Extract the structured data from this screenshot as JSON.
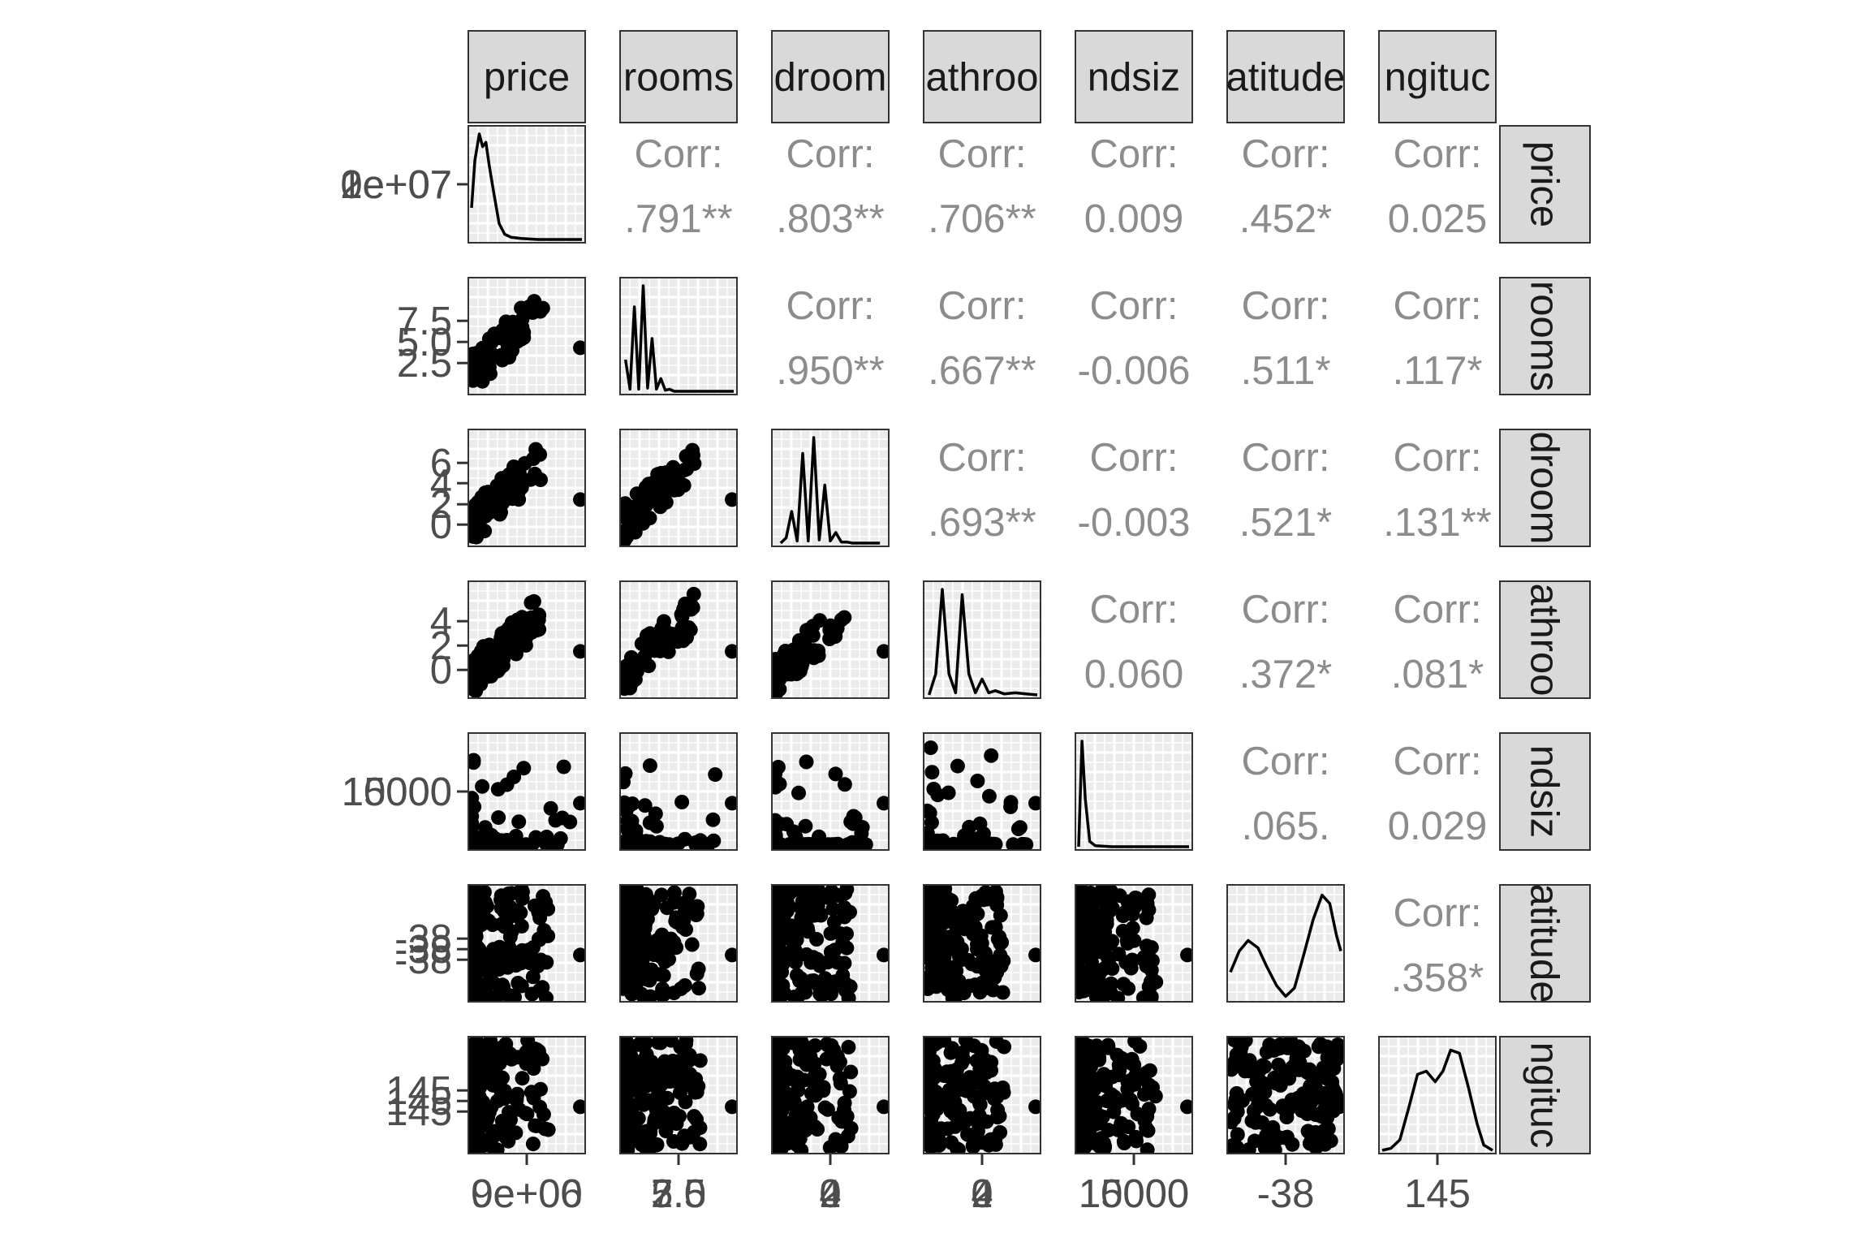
{
  "chart_data": {
    "type": "scatter-matrix",
    "variables": [
      "price",
      "rooms",
      "bedrooms",
      "bathrooms",
      "landsize",
      "latitude",
      "longitude"
    ],
    "strip_labels": [
      "price",
      "rooms",
      "droom",
      "athroo",
      "ndsiz",
      "atitude",
      "ngituc"
    ],
    "corr_prefix": "Corr:",
    "correlations": [
      {
        "row": 0,
        "col": 1,
        "text": ".791**"
      },
      {
        "row": 0,
        "col": 2,
        "text": ".803**"
      },
      {
        "row": 0,
        "col": 3,
        "text": ".706**"
      },
      {
        "row": 0,
        "col": 4,
        "text": "0.009"
      },
      {
        "row": 0,
        "col": 5,
        "text": ".452*"
      },
      {
        "row": 0,
        "col": 6,
        "text": "0.025"
      },
      {
        "row": 1,
        "col": 2,
        "text": ".950**"
      },
      {
        "row": 1,
        "col": 3,
        "text": ".667**"
      },
      {
        "row": 1,
        "col": 4,
        "text": "-0.006"
      },
      {
        "row": 1,
        "col": 5,
        "text": ".511*"
      },
      {
        "row": 1,
        "col": 6,
        "text": ".117*"
      },
      {
        "row": 2,
        "col": 3,
        "text": ".693**"
      },
      {
        "row": 2,
        "col": 4,
        "text": "-0.003"
      },
      {
        "row": 2,
        "col": 5,
        "text": ".521*"
      },
      {
        "row": 2,
        "col": 6,
        "text": ".131**"
      },
      {
        "row": 3,
        "col": 4,
        "text": "0.060"
      },
      {
        "row": 3,
        "col": 5,
        "text": ".372*"
      },
      {
        "row": 3,
        "col": 6,
        "text": ".081*"
      },
      {
        "row": 4,
        "col": 5,
        "text": ".065."
      },
      {
        "row": 4,
        "col": 6,
        "text": "0.029"
      },
      {
        "row": 5,
        "col": 6,
        "text": ".358*"
      }
    ],
    "row_tick_labels": [
      [
        "0e+07",
        "1e+07",
        "2e+07"
      ],
      [
        "7.5",
        "5.0",
        "2.5"
      ],
      [
        "6",
        "4",
        "2",
        "0"
      ],
      [
        "4",
        "2",
        "0"
      ],
      [
        "10000",
        "15000"
      ],
      [
        "-38",
        "-38",
        "-38"
      ],
      [
        "145",
        "145",
        "145"
      ]
    ],
    "col_tick_labels": [
      [
        "0e+00",
        "9e+06"
      ],
      [
        "5.0",
        "2.5",
        "7.5"
      ],
      [
        "0",
        "2",
        "4"
      ],
      [
        "0",
        "2",
        "4"
      ],
      [
        "15000",
        "10000"
      ],
      [
        "-38"
      ],
      [
        "145"
      ]
    ],
    "density_panels": [
      {
        "var": "price",
        "x": [
          0,
          0.03,
          0.07,
          0.1,
          0.13,
          0.16,
          0.2,
          0.25,
          0.3,
          0.36,
          0.45,
          0.6,
          0.8,
          1.0
        ],
        "y": [
          0.3,
          0.75,
          1.0,
          0.88,
          0.92,
          0.7,
          0.45,
          0.15,
          0.05,
          0.02,
          0.01,
          0,
          0,
          0
        ]
      },
      {
        "var": "rooms",
        "x": [
          0.02,
          0.06,
          0.1,
          0.14,
          0.18,
          0.22,
          0.26,
          0.3,
          0.34,
          0.38,
          0.42,
          0.46,
          0.5,
          0.55,
          0.6,
          1.0
        ],
        "y": [
          0.3,
          0.02,
          0.8,
          0.02,
          1.0,
          0.03,
          0.5,
          0.02,
          0.12,
          0.01,
          0.02,
          0,
          0,
          0,
          0,
          0
        ]
      },
      {
        "var": "bedrooms",
        "x": [
          0.05,
          0.1,
          0.15,
          0.2,
          0.25,
          0.3,
          0.35,
          0.4,
          0.45,
          0.5,
          0.55,
          0.6,
          0.65,
          0.7,
          0.8,
          0.95
        ],
        "y": [
          0.0,
          0.05,
          0.3,
          0.02,
          0.85,
          0.02,
          1.0,
          0.03,
          0.55,
          0.02,
          0.1,
          0.01,
          0.01,
          0,
          0,
          0
        ]
      },
      {
        "var": "bathrooms",
        "x": [
          0.02,
          0.08,
          0.14,
          0.2,
          0.26,
          0.32,
          0.38,
          0.44,
          0.5,
          0.56,
          0.62,
          0.7,
          0.8,
          0.9,
          1.0
        ],
        "y": [
          0.0,
          0.2,
          1.0,
          0.2,
          0.02,
          0.95,
          0.2,
          0.02,
          0.15,
          0.02,
          0.04,
          0.01,
          0.02,
          0.01,
          0
        ]
      },
      {
        "var": "landsize",
        "x": [
          0.0,
          0.03,
          0.06,
          0.1,
          0.15,
          0.3,
          0.5,
          0.7,
          1.0
        ],
        "y": [
          0.0,
          1.0,
          0.45,
          0.05,
          0.01,
          0,
          0,
          0,
          0
        ]
      },
      {
        "var": "latitude",
        "x": [
          0.0,
          0.08,
          0.16,
          0.25,
          0.33,
          0.42,
          0.5,
          0.58,
          0.66,
          0.75,
          0.83,
          0.9,
          0.96,
          1.0
        ],
        "y": [
          0.25,
          0.45,
          0.55,
          0.48,
          0.3,
          0.12,
          0.02,
          0.1,
          0.4,
          0.75,
          0.98,
          0.9,
          0.6,
          0.45
        ]
      },
      {
        "var": "longitude",
        "x": [
          0.0,
          0.08,
          0.16,
          0.24,
          0.32,
          0.4,
          0.48,
          0.55,
          0.62,
          0.7,
          0.78,
          0.86,
          0.92,
          1.0
        ],
        "y": [
          0.0,
          0.02,
          0.1,
          0.4,
          0.72,
          0.75,
          0.65,
          0.75,
          0.95,
          0.92,
          0.6,
          0.25,
          0.05,
          0
        ]
      }
    ]
  }
}
